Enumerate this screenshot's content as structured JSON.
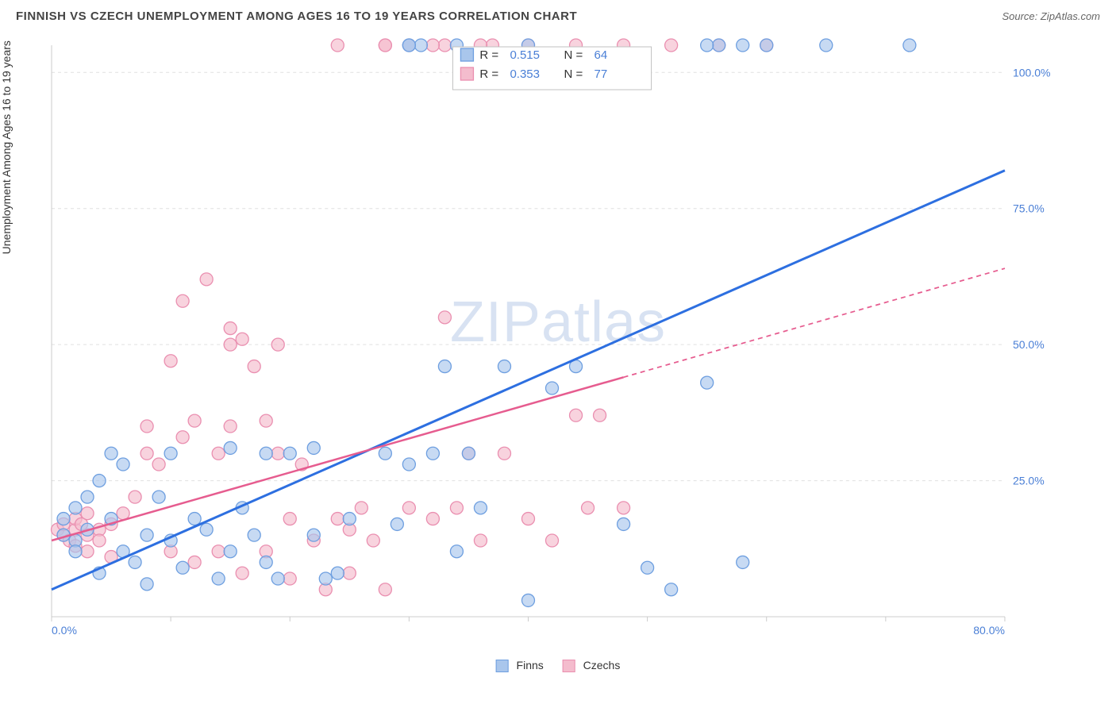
{
  "title": "FINNISH VS CZECH UNEMPLOYMENT AMONG AGES 16 TO 19 YEARS CORRELATION CHART",
  "source": "Source: ZipAtlas.com",
  "ylabel": "Unemployment Among Ages 16 to 19 years",
  "watermark": "ZIPatlas",
  "chart": {
    "type": "scatter",
    "background_color": "#ffffff",
    "grid_color": "#e0e0e0",
    "axis_color": "#cccccc",
    "xlim": [
      0,
      80
    ],
    "ylim": [
      0,
      105
    ],
    "x_ticks": [
      0,
      10,
      20,
      30,
      40,
      50,
      60,
      70,
      80
    ],
    "y_ticks": [
      25,
      50,
      75,
      100
    ],
    "y_tick_labels": [
      "25.0%",
      "50.0%",
      "75.0%",
      "100.0%"
    ],
    "x_axis_start_label": "0.0%",
    "x_axis_end_label": "80.0%",
    "axis_label_color": "#4a7fd6",
    "series": [
      {
        "name": "Finns",
        "color_fill": "#a9c6ec",
        "color_stroke": "#6e9fe0",
        "marker_radius": 8,
        "marker_opacity": 0.65,
        "R": 0.515,
        "N": 64,
        "trend": {
          "x1": 0,
          "y1": 5,
          "x2": 80,
          "y2": 82,
          "stroke": "#2d6fe0",
          "width": 3,
          "dash_from_x": null
        },
        "points": [
          [
            1,
            15
          ],
          [
            1,
            18
          ],
          [
            2,
            14
          ],
          [
            2,
            20
          ],
          [
            2,
            12
          ],
          [
            3,
            22
          ],
          [
            3,
            16
          ],
          [
            4,
            25
          ],
          [
            4,
            8
          ],
          [
            5,
            18
          ],
          [
            5,
            30
          ],
          [
            6,
            12
          ],
          [
            6,
            28
          ],
          [
            7,
            10
          ],
          [
            8,
            15
          ],
          [
            8,
            6
          ],
          [
            9,
            22
          ],
          [
            10,
            14
          ],
          [
            10,
            30
          ],
          [
            11,
            9
          ],
          [
            12,
            18
          ],
          [
            13,
            16
          ],
          [
            14,
            7
          ],
          [
            15,
            31
          ],
          [
            15,
            12
          ],
          [
            16,
            20
          ],
          [
            17,
            15
          ],
          [
            18,
            10
          ],
          [
            18,
            30
          ],
          [
            19,
            7
          ],
          [
            20,
            30
          ],
          [
            22,
            31
          ],
          [
            22,
            15
          ],
          [
            23,
            7
          ],
          [
            24,
            8
          ],
          [
            25,
            18
          ],
          [
            28,
            30
          ],
          [
            29,
            17
          ],
          [
            30,
            28
          ],
          [
            32,
            30
          ],
          [
            33,
            46
          ],
          [
            34,
            12
          ],
          [
            35,
            30
          ],
          [
            36,
            20
          ],
          [
            38,
            46
          ],
          [
            40,
            3
          ],
          [
            42,
            42
          ],
          [
            44,
            46
          ],
          [
            48,
            17
          ],
          [
            50,
            9
          ],
          [
            52,
            5
          ],
          [
            55,
            43
          ],
          [
            58,
            10
          ],
          [
            56,
            105
          ],
          [
            60,
            105
          ],
          [
            65,
            105
          ],
          [
            72,
            105
          ],
          [
            40,
            105
          ],
          [
            31,
            105
          ],
          [
            34,
            105
          ],
          [
            30,
            105
          ],
          [
            58,
            105
          ],
          [
            55,
            105
          ],
          [
            30,
            105
          ]
        ]
      },
      {
        "name": "Czechs",
        "color_fill": "#f4bccd",
        "color_stroke": "#ea8fb0",
        "marker_radius": 8,
        "marker_opacity": 0.65,
        "R": 0.353,
        "N": 77,
        "trend": {
          "x1": 0,
          "y1": 14,
          "x2": 80,
          "y2": 64,
          "stroke": "#e65c8f",
          "width": 2.5,
          "dash_from_x": 48
        },
        "points": [
          [
            0.5,
            16
          ],
          [
            1,
            15
          ],
          [
            1,
            17
          ],
          [
            1.5,
            14
          ],
          [
            2,
            16
          ],
          [
            2,
            18
          ],
          [
            2,
            13
          ],
          [
            2.5,
            17
          ],
          [
            3,
            15
          ],
          [
            3,
            19
          ],
          [
            3,
            12
          ],
          [
            4,
            16
          ],
          [
            4,
            14
          ],
          [
            5,
            17
          ],
          [
            5,
            11
          ],
          [
            6,
            19
          ],
          [
            7,
            22
          ],
          [
            8,
            30
          ],
          [
            8,
            35
          ],
          [
            9,
            28
          ],
          [
            10,
            47
          ],
          [
            10,
            12
          ],
          [
            11,
            58
          ],
          [
            11,
            33
          ],
          [
            12,
            10
          ],
          [
            12,
            36
          ],
          [
            13,
            62
          ],
          [
            14,
            30
          ],
          [
            14,
            12
          ],
          [
            15,
            35
          ],
          [
            15,
            50
          ],
          [
            15,
            53
          ],
          [
            16,
            8
          ],
          [
            16,
            51
          ],
          [
            17,
            46
          ],
          [
            18,
            12
          ],
          [
            18,
            36
          ],
          [
            19,
            30
          ],
          [
            19,
            50
          ],
          [
            20,
            7
          ],
          [
            20,
            18
          ],
          [
            21,
            28
          ],
          [
            22,
            14
          ],
          [
            23,
            5
          ],
          [
            24,
            18
          ],
          [
            25,
            16
          ],
          [
            25,
            8
          ],
          [
            26,
            20
          ],
          [
            27,
            14
          ],
          [
            28,
            5
          ],
          [
            30,
            20
          ],
          [
            32,
            18
          ],
          [
            33,
            55
          ],
          [
            34,
            20
          ],
          [
            35,
            30
          ],
          [
            36,
            14
          ],
          [
            37,
            105
          ],
          [
            38,
            30
          ],
          [
            40,
            18
          ],
          [
            42,
            14
          ],
          [
            44,
            37
          ],
          [
            45,
            20
          ],
          [
            46,
            37
          ],
          [
            48,
            20
          ],
          [
            33,
            105
          ],
          [
            28,
            105
          ],
          [
            30,
            105
          ],
          [
            24,
            105
          ],
          [
            28,
            105
          ],
          [
            32,
            105
          ],
          [
            36,
            105
          ],
          [
            40,
            105
          ],
          [
            44,
            105
          ],
          [
            48,
            105
          ],
          [
            52,
            105
          ],
          [
            56,
            105
          ],
          [
            60,
            105
          ]
        ]
      }
    ],
    "top_legend": {
      "bg": "#ffffff",
      "border": "#c0c0c0",
      "text_color": "#333333",
      "value_color": "#4a7fd6"
    },
    "bottom_legend": {
      "items": [
        "Finns",
        "Czechs"
      ]
    }
  }
}
